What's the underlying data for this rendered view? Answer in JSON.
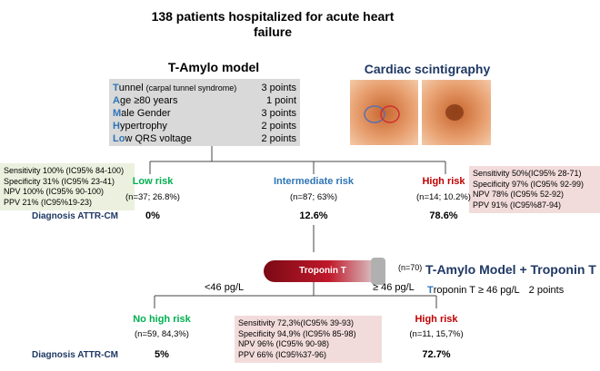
{
  "title": "138 patients hospitalized for acute heart failure",
  "model": {
    "title": "T-Amylo model",
    "rows": [
      {
        "initial": "T",
        "rest": "unnel",
        "note": "(carpal tunnel syndrome)",
        "points": "3 points"
      },
      {
        "initial": "A",
        "rest": "ge ≥80 years",
        "points": "1 point"
      },
      {
        "initial": "M",
        "rest": "ale Gender",
        "points": "3 points"
      },
      {
        "initial": "H",
        "rest": "ypertrophy",
        "points": "2 points"
      },
      {
        "initial": "Lo",
        "rest": "w QRS voltage",
        "points": "2 points"
      }
    ]
  },
  "scintigraphy": {
    "title": "Cardiac scintigraphy"
  },
  "low_metrics": [
    "Sensitivity 100% (IC95% 84-100)",
    "Specificity 31% (IC95% 23-41)",
    "NPV 100% (IC95% 90-100)",
    "PPV 21% (IC95%19-23)"
  ],
  "high_metrics": [
    "Sensitivity 50%(IC95% 28-71)",
    "Specificity 97% (IC95% 92-99)",
    "NPV 78% (IC95% 52-92)",
    "PPV 91% (IC95%87-94)"
  ],
  "diagnosis_label": "Diagnosis ATTR-CM",
  "groups": [
    {
      "name": "Low risk",
      "n": "(n=37; 26.8%)",
      "diagnosis": "0%"
    },
    {
      "name": "Intermediate risk",
      "n": "(n=87; 63%)",
      "diagnosis": "12.6%"
    },
    {
      "name": "High risk",
      "n": "(n=14; 10.2%)",
      "diagnosis": "78.6%"
    }
  ],
  "troponin": {
    "tube": "Troponin T",
    "n": "(n=70)",
    "low": "<46 pg/L",
    "high": "≥ 46 pg/L",
    "model_title": "T-Amylo Model + Troponin T",
    "rule_initial": "T",
    "rule_rest": "roponin T ≥ 46 pg/L",
    "rule_points": "2 points"
  },
  "sub_metrics": [
    "Sensitivity 72,3%(IC95% 39-93)",
    "Specificity 94,9% (IC95% 85-98)",
    "NPV 96% (IC95% 90-98)",
    "PPV 66% (IC95%37-96)"
  ],
  "sub_groups": [
    {
      "name": "No high risk",
      "n": "(n=59, 84,3%)",
      "diagnosis": "5%"
    },
    {
      "name": "High risk",
      "n": "(n=11, 15,7%)",
      "diagnosis": "72.7%"
    }
  ]
}
